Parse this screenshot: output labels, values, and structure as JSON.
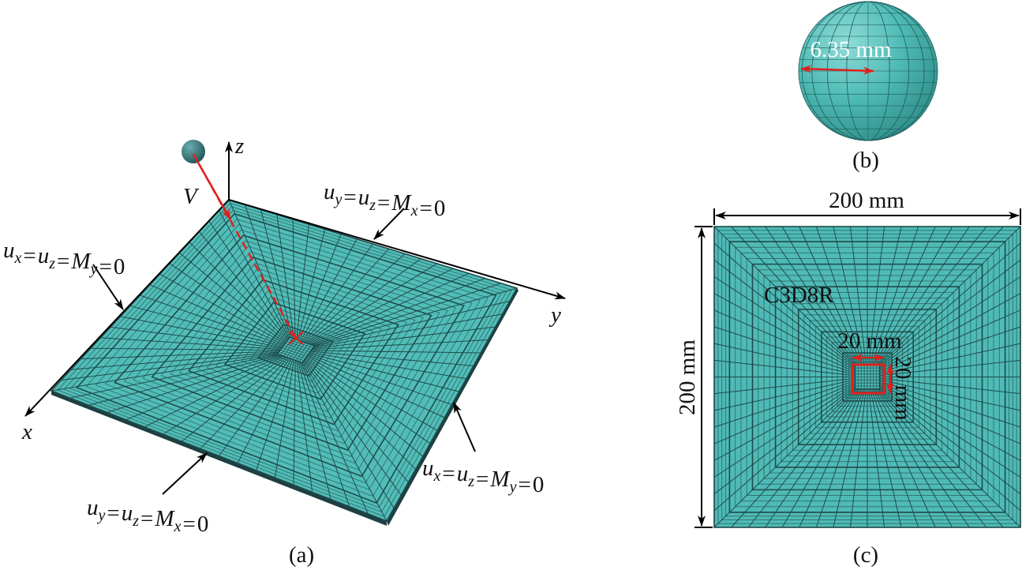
{
  "figure": {
    "panel_a": {
      "caption": "(a)",
      "axes": {
        "x": "x",
        "y": "y",
        "z": "z"
      },
      "velocity": "V",
      "bc_top": {
        "terms": [
          {
            "base": "u",
            "sub": "y"
          },
          {
            "base": "u",
            "sub": "z"
          },
          {
            "base": "M",
            "sub": "x"
          }
        ],
        "equals": "=",
        "rhs": "0"
      },
      "bc_left": {
        "terms": [
          {
            "base": "u",
            "sub": "x"
          },
          {
            "base": "u",
            "sub": "z"
          },
          {
            "base": "M",
            "sub": "y"
          }
        ],
        "equals": "=",
        "rhs": "0"
      },
      "bc_right": {
        "terms": [
          {
            "base": "u",
            "sub": "x"
          },
          {
            "base": "u",
            "sub": "z"
          },
          {
            "base": "M",
            "sub": "y"
          }
        ],
        "equals": "=",
        "rhs": "0"
      },
      "bc_bottom": {
        "terms": [
          {
            "base": "u",
            "sub": "y"
          },
          {
            "base": "u",
            "sub": "z"
          },
          {
            "base": "M",
            "sub": "x"
          }
        ],
        "equals": "=",
        "rhs": "0"
      }
    },
    "panel_b": {
      "caption": "(b)",
      "diameter": "6.35 mm"
    },
    "panel_c": {
      "caption": "(c)",
      "width": "200 mm",
      "height": "200 mm",
      "element": "C3D8R",
      "impact_width": "20 mm",
      "impact_height": "20 mm"
    }
  }
}
